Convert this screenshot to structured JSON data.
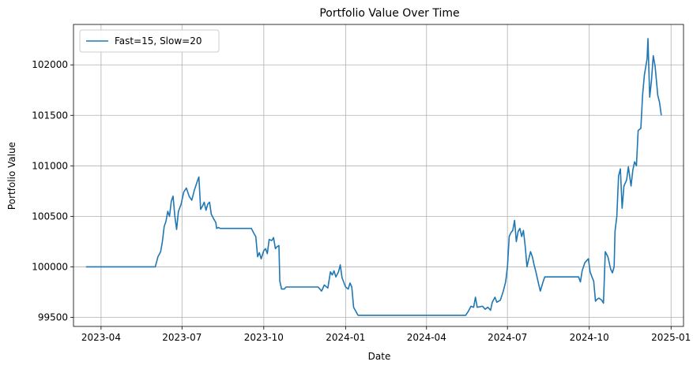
{
  "chart_data": {
    "type": "line",
    "title": "Portfolio Value Over Time",
    "xlabel": "Date",
    "ylabel": "Portfolio Value",
    "grid": true,
    "legend_position": "top-left",
    "xlim": [
      "2023-03-01",
      "2025-01-15"
    ],
    "ylim": [
      99410,
      102400
    ],
    "x_ticks": [
      {
        "date": "2023-04-01",
        "label": "2023-04"
      },
      {
        "date": "2023-07-01",
        "label": "2023-07"
      },
      {
        "date": "2023-10-01",
        "label": "2023-10"
      },
      {
        "date": "2024-01-01",
        "label": "2024-01"
      },
      {
        "date": "2024-04-01",
        "label": "2024-04"
      },
      {
        "date": "2024-07-01",
        "label": "2024-07"
      },
      {
        "date": "2024-10-01",
        "label": "2024-10"
      },
      {
        "date": "2025-01-01",
        "label": "2025-01"
      }
    ],
    "y_ticks": [
      {
        "value": 99500,
        "label": "99500"
      },
      {
        "value": 100000,
        "label": "100000"
      },
      {
        "value": 100500,
        "label": "100500"
      },
      {
        "value": 101000,
        "label": "101000"
      },
      {
        "value": 101500,
        "label": "101500"
      },
      {
        "value": 102000,
        "label": "102000"
      }
    ],
    "series": [
      {
        "name": "Fast=15, Slow=20",
        "color": "#1f77b4",
        "points": [
          [
            "2023-03-15",
            100000
          ],
          [
            "2023-06-01",
            100000
          ],
          [
            "2023-06-04",
            100100
          ],
          [
            "2023-06-07",
            100150
          ],
          [
            "2023-06-09",
            100250
          ],
          [
            "2023-06-11",
            100400
          ],
          [
            "2023-06-13",
            100450
          ],
          [
            "2023-06-15",
            100550
          ],
          [
            "2023-06-17",
            100500
          ],
          [
            "2023-06-19",
            100650
          ],
          [
            "2023-06-21",
            100700
          ],
          [
            "2023-06-23",
            100500
          ],
          [
            "2023-06-25",
            100370
          ],
          [
            "2023-06-27",
            100550
          ],
          [
            "2023-06-30",
            100620
          ],
          [
            "2023-07-03",
            100740
          ],
          [
            "2023-07-06",
            100780
          ],
          [
            "2023-07-09",
            100700
          ],
          [
            "2023-07-12",
            100660
          ],
          [
            "2023-07-15",
            100760
          ],
          [
            "2023-07-18",
            100840
          ],
          [
            "2023-07-20",
            100890
          ],
          [
            "2023-07-22",
            100570
          ],
          [
            "2023-07-24",
            100600
          ],
          [
            "2023-07-26",
            100640
          ],
          [
            "2023-07-28",
            100560
          ],
          [
            "2023-07-30",
            100620
          ],
          [
            "2023-08-01",
            100640
          ],
          [
            "2023-08-03",
            100520
          ],
          [
            "2023-08-06",
            100470
          ],
          [
            "2023-08-08",
            100440
          ],
          [
            "2023-08-09",
            100380
          ],
          [
            "2023-08-11",
            100390
          ],
          [
            "2023-08-13",
            100380
          ],
          [
            "2023-09-17",
            100380
          ],
          [
            "2023-09-20",
            100330
          ],
          [
            "2023-09-22",
            100300
          ],
          [
            "2023-09-24",
            100100
          ],
          [
            "2023-09-26",
            100140
          ],
          [
            "2023-09-28",
            100080
          ],
          [
            "2023-10-01",
            100160
          ],
          [
            "2023-10-03",
            100180
          ],
          [
            "2023-10-05",
            100130
          ],
          [
            "2023-10-07",
            100270
          ],
          [
            "2023-10-10",
            100260
          ],
          [
            "2023-10-12",
            100290
          ],
          [
            "2023-10-14",
            100180
          ],
          [
            "2023-10-16",
            100200
          ],
          [
            "2023-10-18",
            100210
          ],
          [
            "2023-10-19",
            99860
          ],
          [
            "2023-10-21",
            99780
          ],
          [
            "2023-10-24",
            99780
          ],
          [
            "2023-10-26",
            99800
          ],
          [
            "2023-12-01",
            99800
          ],
          [
            "2023-12-05",
            99760
          ],
          [
            "2023-12-08",
            99820
          ],
          [
            "2023-12-12",
            99790
          ],
          [
            "2023-12-15",
            99950
          ],
          [
            "2023-12-17",
            99920
          ],
          [
            "2023-12-19",
            99960
          ],
          [
            "2023-12-21",
            99900
          ],
          [
            "2023-12-24",
            99950
          ],
          [
            "2023-12-26",
            100020
          ],
          [
            "2023-12-28",
            99890
          ],
          [
            "2024-01-01",
            99800
          ],
          [
            "2024-01-04",
            99780
          ],
          [
            "2024-01-06",
            99840
          ],
          [
            "2024-01-08",
            99800
          ],
          [
            "2024-01-10",
            99600
          ],
          [
            "2024-01-15",
            99520
          ],
          [
            "2024-05-15",
            99520
          ],
          [
            "2024-05-18",
            99560
          ],
          [
            "2024-05-21",
            99610
          ],
          [
            "2024-05-24",
            99600
          ],
          [
            "2024-05-26",
            99700
          ],
          [
            "2024-05-28",
            99600
          ],
          [
            "2024-06-03",
            99610
          ],
          [
            "2024-06-06",
            99580
          ],
          [
            "2024-06-09",
            99600
          ],
          [
            "2024-06-12",
            99570
          ],
          [
            "2024-06-14",
            99650
          ],
          [
            "2024-06-17",
            99700
          ],
          [
            "2024-06-19",
            99650
          ],
          [
            "2024-06-23",
            99670
          ],
          [
            "2024-06-26",
            99750
          ],
          [
            "2024-06-29",
            99850
          ],
          [
            "2024-07-01",
            100000
          ],
          [
            "2024-07-03",
            100300
          ],
          [
            "2024-07-05",
            100340
          ],
          [
            "2024-07-07",
            100360
          ],
          [
            "2024-07-09",
            100460
          ],
          [
            "2024-07-11",
            100250
          ],
          [
            "2024-07-13",
            100350
          ],
          [
            "2024-07-15",
            100380
          ],
          [
            "2024-07-17",
            100300
          ],
          [
            "2024-07-19",
            100360
          ],
          [
            "2024-07-21",
            100200
          ],
          [
            "2024-07-23",
            100000
          ],
          [
            "2024-07-25",
            100080
          ],
          [
            "2024-07-27",
            100150
          ],
          [
            "2024-07-29",
            100100
          ],
          [
            "2024-07-31",
            100020
          ],
          [
            "2024-08-02",
            99950
          ],
          [
            "2024-08-05",
            99830
          ],
          [
            "2024-08-07",
            99760
          ],
          [
            "2024-08-10",
            99850
          ],
          [
            "2024-08-12",
            99900
          ],
          [
            "2024-09-19",
            99900
          ],
          [
            "2024-09-21",
            99850
          ],
          [
            "2024-09-23",
            99960
          ],
          [
            "2024-09-26",
            100040
          ],
          [
            "2024-09-28",
            100060
          ],
          [
            "2024-09-30",
            100080
          ],
          [
            "2024-10-02",
            99950
          ],
          [
            "2024-10-04",
            99900
          ],
          [
            "2024-10-06",
            99860
          ],
          [
            "2024-10-08",
            99660
          ],
          [
            "2024-10-10",
            99680
          ],
          [
            "2024-10-12",
            99690
          ],
          [
            "2024-10-15",
            99670
          ],
          [
            "2024-10-17",
            99640
          ],
          [
            "2024-10-19",
            100150
          ],
          [
            "2024-10-22",
            100100
          ],
          [
            "2024-10-25",
            99980
          ],
          [
            "2024-10-27",
            99940
          ],
          [
            "2024-10-29",
            100000
          ],
          [
            "2024-10-30",
            100350
          ],
          [
            "2024-11-01",
            100500
          ],
          [
            "2024-11-03",
            100900
          ],
          [
            "2024-11-05",
            100970
          ],
          [
            "2024-11-07",
            100580
          ],
          [
            "2024-11-09",
            100800
          ],
          [
            "2024-11-12",
            100860
          ],
          [
            "2024-11-14",
            100990
          ],
          [
            "2024-11-17",
            100800
          ],
          [
            "2024-11-19",
            100960
          ],
          [
            "2024-11-21",
            101040
          ],
          [
            "2024-11-23",
            101000
          ],
          [
            "2024-11-25",
            101350
          ],
          [
            "2024-11-28",
            101370
          ],
          [
            "2024-11-30",
            101700
          ],
          [
            "2024-12-02",
            101900
          ],
          [
            "2024-12-05",
            102060
          ],
          [
            "2024-12-06",
            102260
          ],
          [
            "2024-12-08",
            101680
          ],
          [
            "2024-12-10",
            101850
          ],
          [
            "2024-12-12",
            102090
          ],
          [
            "2024-12-14",
            101990
          ],
          [
            "2024-12-17",
            101700
          ],
          [
            "2024-12-19",
            101630
          ],
          [
            "2024-12-21",
            101500
          ]
        ]
      }
    ]
  }
}
